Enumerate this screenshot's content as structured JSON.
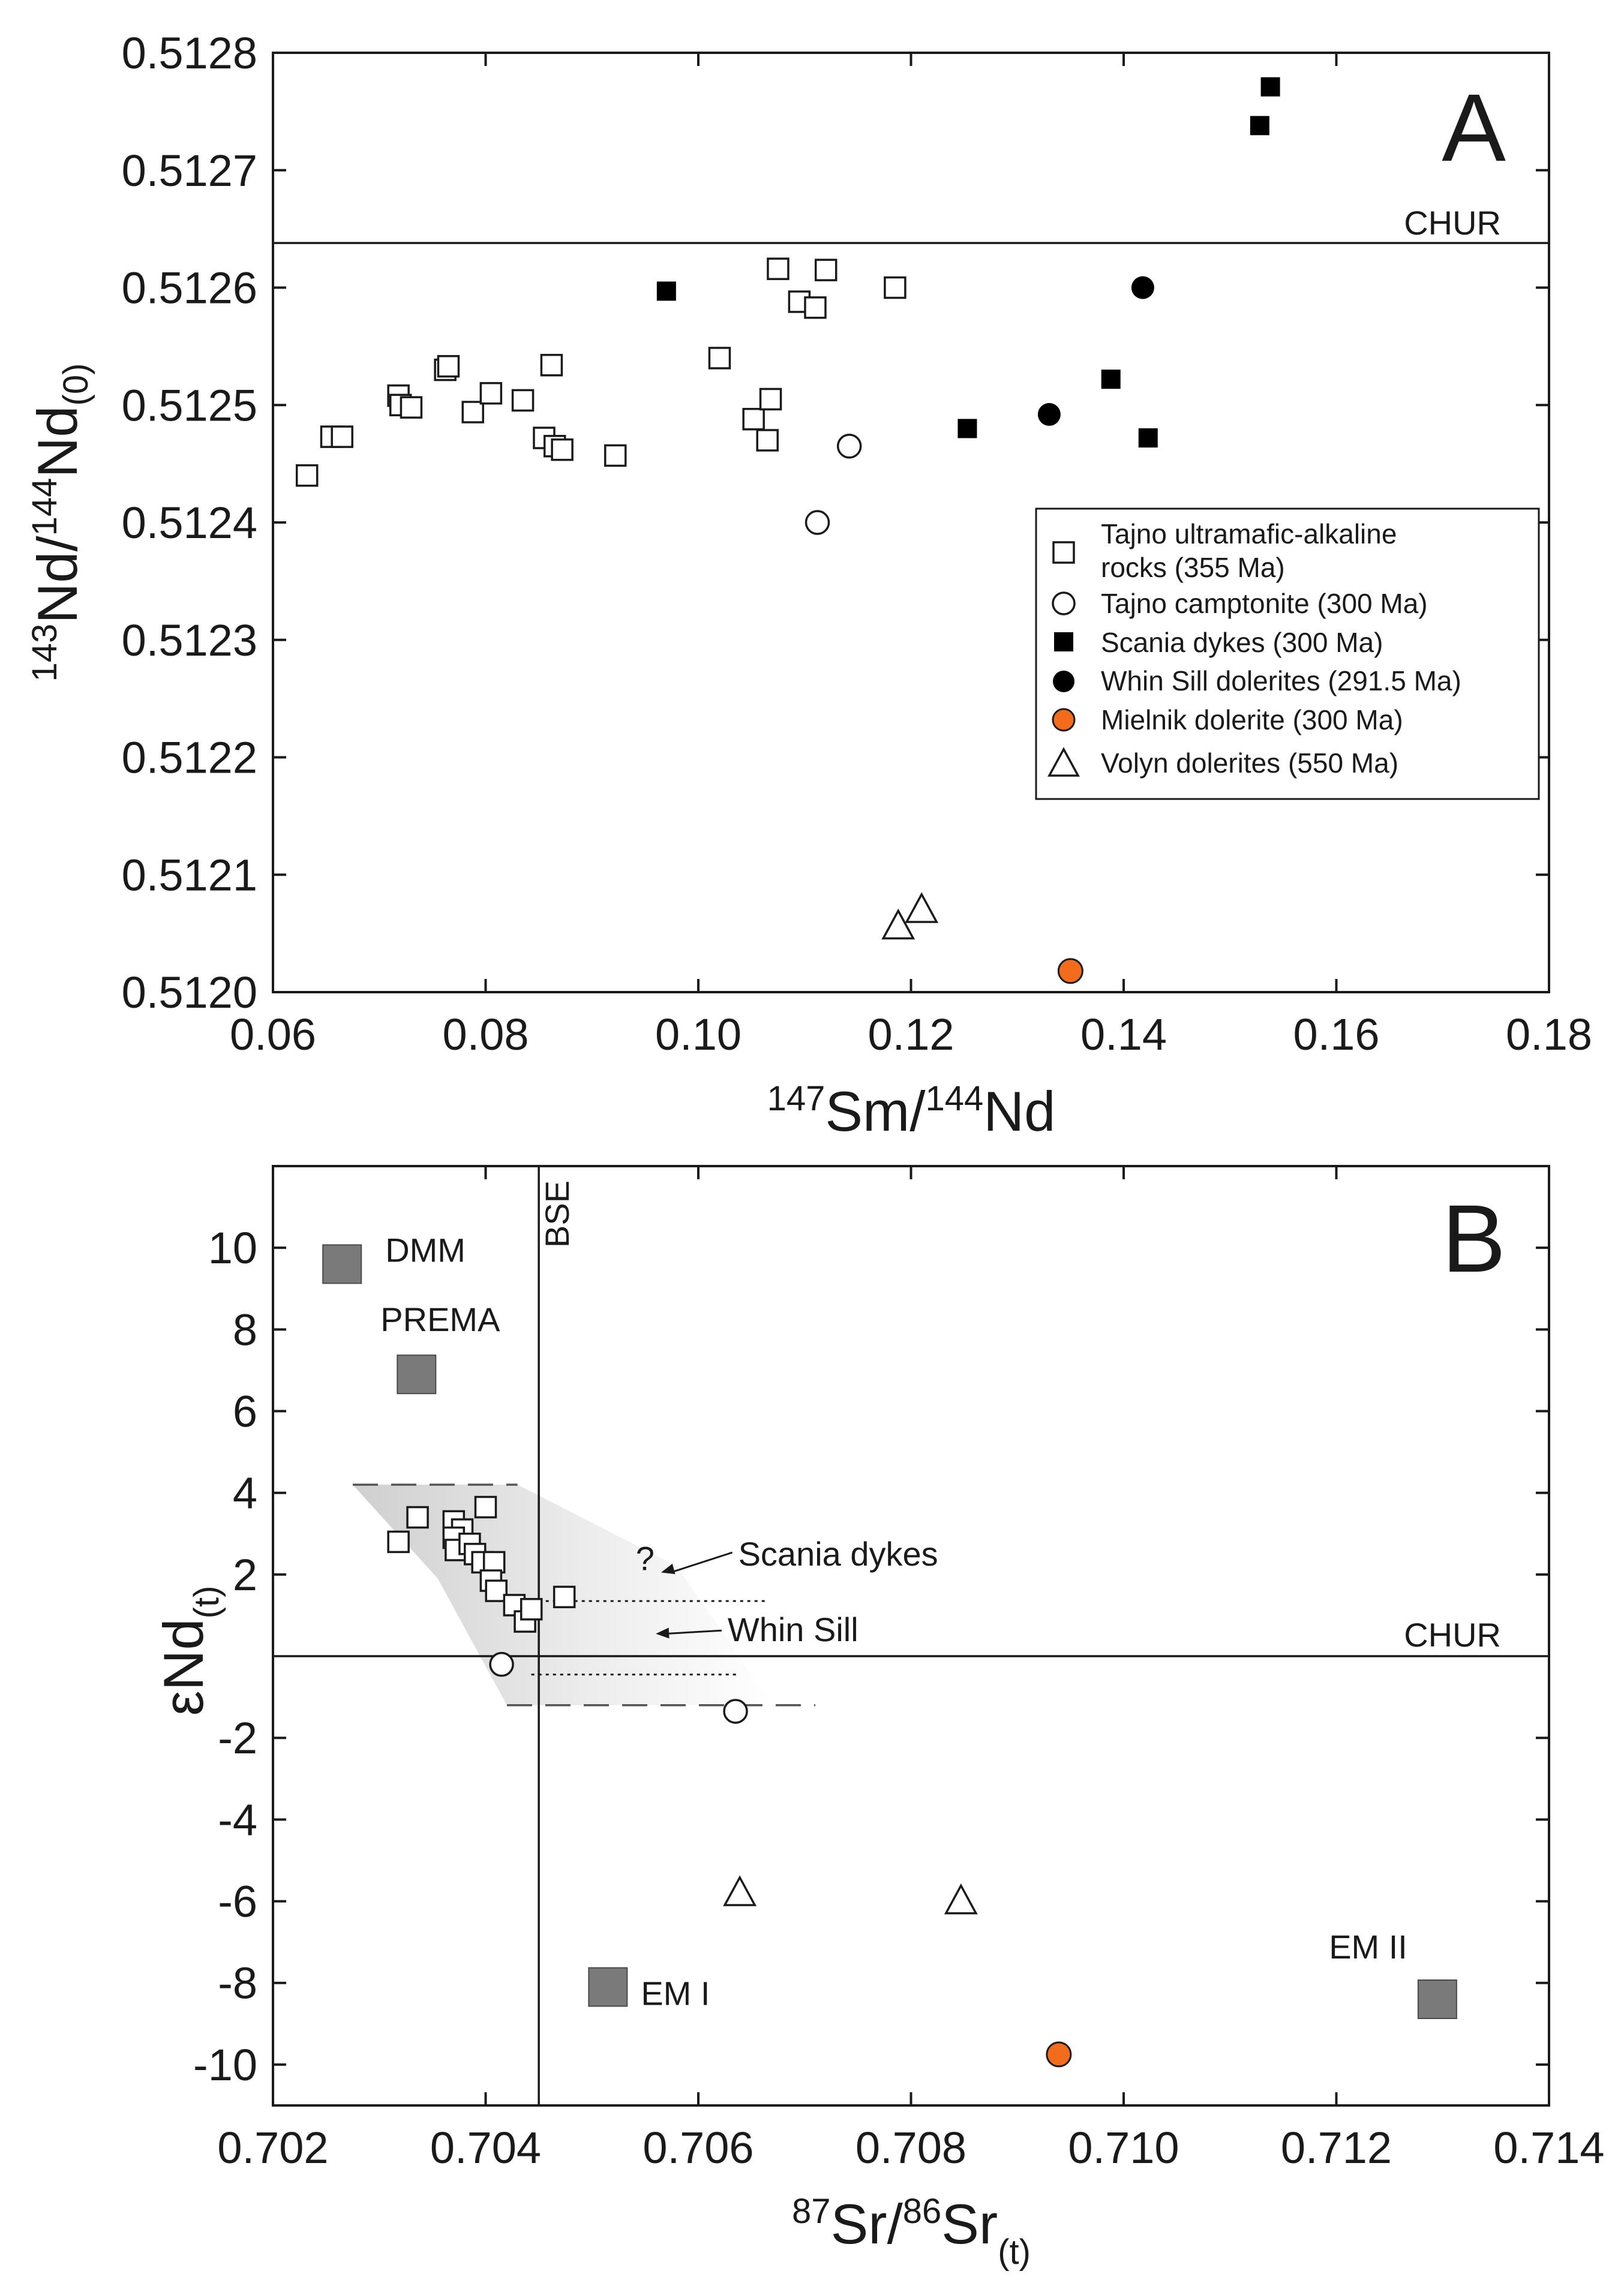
{
  "chart_data": [
    {
      "panel": "A",
      "type": "scatter",
      "label": "A",
      "xlabel": {
        "sup1": "147",
        "main1": "Sm/",
        "sup2": "144",
        "main2": "Nd"
      },
      "ylabel": {
        "sup1": "143",
        "main1": "Nd/",
        "sup2": "144",
        "main2": "Nd",
        "sub": "(0)"
      },
      "xlim": [
        0.06,
        0.18
      ],
      "ylim": [
        0.512,
        0.5128
      ],
      "xticks": [
        "0.06",
        "0.08",
        "0.10",
        "0.12",
        "0.14",
        "0.16",
        "0.18"
      ],
      "yticks": [
        "0.5120",
        "0.5121",
        "0.5122",
        "0.5123",
        "0.5124",
        "0.5125",
        "0.5126",
        "0.5127",
        "0.5128"
      ],
      "reference_lines": [
        {
          "label": "CHUR",
          "y": 0.512638
        }
      ],
      "legend_position": "lower-right",
      "series": [
        {
          "name": "Tajno ultramafic-alkaline rocks (355 Ma)",
          "legend_lines": [
            "Tajno ultramafic-alkaline",
            "rocks (355 Ma)"
          ],
          "marker": "square-open",
          "points": [
            [
              0.0632,
              0.51244
            ],
            [
              0.0655,
              0.512473
            ],
            [
              0.0665,
              0.512473
            ],
            [
              0.0718,
              0.512508
            ],
            [
              0.072,
              0.5125
            ],
            [
              0.073,
              0.512498
            ],
            [
              0.0762,
              0.51253
            ],
            [
              0.0765,
              0.512533
            ],
            [
              0.0788,
              0.512494
            ],
            [
              0.0805,
              0.51251
            ],
            [
              0.0835,
              0.512504
            ],
            [
              0.0855,
              0.512472
            ],
            [
              0.0862,
              0.512534
            ],
            [
              0.0865,
              0.512465
            ],
            [
              0.0872,
              0.512462
            ],
            [
              0.0922,
              0.512457
            ],
            [
              0.102,
              0.51254
            ],
            [
              0.1052,
              0.512488
            ],
            [
              0.1065,
              0.51247
            ],
            [
              0.1068,
              0.512505
            ],
            [
              0.1075,
              0.512616
            ],
            [
              0.1095,
              0.512588
            ],
            [
              0.111,
              0.512583
            ],
            [
              0.112,
              0.512615
            ],
            [
              0.1185,
              0.5126
            ]
          ]
        },
        {
          "name": "Tajno camptonite (300 Ma)",
          "legend_lines": [
            "Tajno camptonite (300 Ma)"
          ],
          "marker": "circle-open",
          "points": [
            [
              0.1142,
              0.512465
            ],
            [
              0.1112,
              0.5124
            ]
          ]
        },
        {
          "name": "Scania dykes (300 Ma)",
          "legend_lines": [
            "Scania dykes (300 Ma)"
          ],
          "marker": "square-filled",
          "points": [
            [
              0.097,
              0.512597
            ],
            [
              0.1253,
              0.51248
            ],
            [
              0.1388,
              0.512522
            ],
            [
              0.1423,
              0.512472
            ],
            [
              0.1528,
              0.512738
            ],
            [
              0.1538,
              0.512771
            ]
          ]
        },
        {
          "name": "Whin Sill dolerites (291.5 Ma)",
          "legend_lines": [
            "Whin Sill dolerites (291.5 Ma)"
          ],
          "marker": "circle-filled",
          "points": [
            [
              0.133,
              0.512492
            ],
            [
              0.1418,
              0.5126
            ]
          ]
        },
        {
          "name": "Mielnik dolerite (300 Ma)",
          "legend_lines": [
            "Mielnik dolerite (300 Ma)"
          ],
          "marker": "circle-orange",
          "points": [
            [
              0.135,
              0.512018
            ]
          ]
        },
        {
          "name": "Volyn dolerites (550 Ma)",
          "legend_lines": [
            "Volyn dolerites (550 Ma)"
          ],
          "marker": "triangle-open",
          "points": [
            [
              0.1188,
              0.512056
            ],
            [
              0.121,
              0.51207
            ]
          ]
        }
      ]
    },
    {
      "panel": "B",
      "type": "scatter",
      "label": "B",
      "xlabel": {
        "sup1": "87",
        "main1": "Sr/",
        "sup2": "86",
        "main2": "Sr",
        "sub": "(t)"
      },
      "ylabel": {
        "main": "εNd",
        "sub": "(t)"
      },
      "xlim": [
        0.702,
        0.714
      ],
      "ylim": [
        -11,
        12
      ],
      "xticks": [
        "0.702",
        "0.704",
        "0.706",
        "0.708",
        "0.710",
        "0.712",
        "0.714"
      ],
      "yticks": [
        "-10",
        "-8",
        "-6",
        "-4",
        "-2",
        "2",
        "4",
        "6",
        "8",
        "10"
      ],
      "reference_lines": [
        {
          "label": "CHUR",
          "y": 0
        },
        {
          "label": "BSE",
          "x": 0.7045
        }
      ],
      "mantle_reservoirs": [
        {
          "name": "DMM",
          "x": 0.70265,
          "y": 9.6
        },
        {
          "name": "PREMA",
          "x": 0.70335,
          "y": 6.9
        },
        {
          "name": "EM I",
          "x": 0.70515,
          "y": -8.1
        },
        {
          "name": "EM II",
          "x": 0.71295,
          "y": -8.4
        }
      ],
      "shaded_field": {
        "upper_eNd": 4.2,
        "lower_eNd": -1.2,
        "upper_x": [
          0.70275,
          0.7043
        ],
        "lower_x": [
          0.7042,
          0.7071
        ]
      },
      "dotted_lines": [
        {
          "series": "Scania dykes",
          "y": 1.35,
          "x": [
            0.70443,
            0.70664
          ]
        },
        {
          "series": "Whin Sill",
          "y": -0.45,
          "x": [
            0.70443,
            0.70639
          ]
        }
      ],
      "annotations": [
        {
          "text": "Scania dykes",
          "x": 0.70615,
          "y": 2.45
        },
        {
          "text": "Whin Sill",
          "x": 0.70605,
          "y": 0.6
        },
        {
          "text": "?",
          "x": 0.7055,
          "y": 2.4
        }
      ],
      "series": [
        {
          "name": "Tajno ultramafic-alkaline rocks (355 Ma)",
          "marker": "square-open",
          "points": [
            [
              0.70318,
              2.8
            ],
            [
              0.70336,
              3.4
            ],
            [
              0.7037,
              3.3
            ],
            [
              0.70378,
              3.1
            ],
            [
              0.7037,
              2.9
            ],
            [
              0.70372,
              2.6
            ],
            [
              0.70385,
              2.75
            ],
            [
              0.7039,
              2.5
            ],
            [
              0.70397,
              2.3
            ],
            [
              0.704,
              3.65
            ],
            [
              0.70408,
              2.3
            ],
            [
              0.70405,
              1.85
            ],
            [
              0.7041,
              1.6
            ],
            [
              0.70427,
              1.25
            ],
            [
              0.70437,
              0.85
            ],
            [
              0.70443,
              1.15
            ],
            [
              0.70474,
              1.45
            ]
          ]
        },
        {
          "name": "Tajno camptonite (300 Ma)",
          "marker": "circle-open",
          "points": [
            [
              0.70415,
              -0.2
            ],
            [
              0.70635,
              -1.35
            ]
          ]
        },
        {
          "name": "Volyn dolerites (550 Ma)",
          "marker": "triangle-open",
          "points": [
            [
              0.70639,
              -5.8
            ],
            [
              0.70847,
              -6
            ]
          ]
        },
        {
          "name": "Mielnik dolerite (300 Ma)",
          "marker": "circle-orange",
          "points": [
            [
              0.70939,
              -9.75
            ]
          ]
        }
      ]
    }
  ]
}
